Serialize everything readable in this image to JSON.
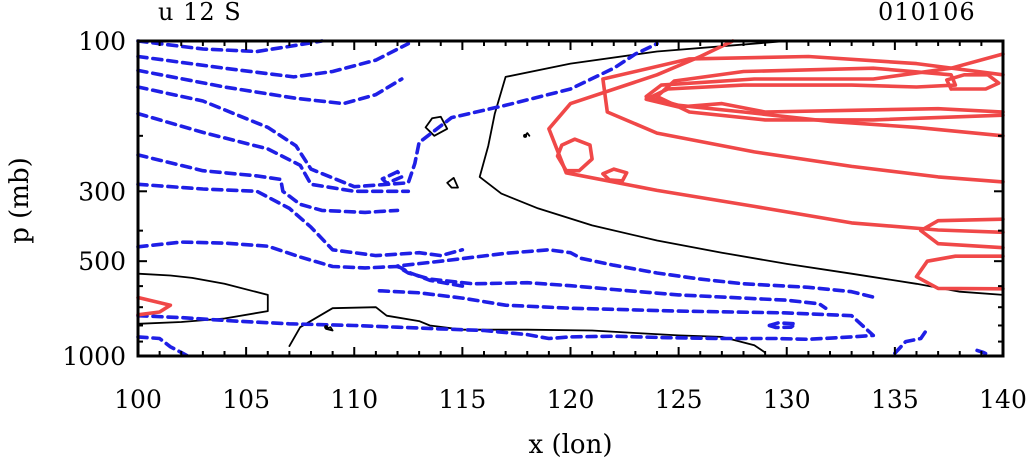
{
  "chart_data": {
    "type": "contour",
    "title_left": "u 12 S",
    "title_right": "010106",
    "xlabel": "x (lon)",
    "ylabel": "p (mb)",
    "x_ticks": [
      100,
      105,
      110,
      115,
      120,
      125,
      130,
      135,
      140
    ],
    "y_ticks": [
      "100",
      "300",
      "500",
      "1000"
    ],
    "xlim": [
      100,
      140
    ],
    "ylim": [
      1000,
      100
    ],
    "y_scale": "log",
    "contour_styles": {
      "positive": "#f04848",
      "zero": "#000000",
      "negative": "#1f1fe6"
    },
    "contours": {
      "positive": [
        [
          [
            127.5,
            100
          ],
          [
            126,
            112
          ],
          [
            124,
            128
          ],
          [
            120,
            158
          ],
          [
            119,
            190
          ],
          [
            119.8,
            262
          ],
          [
            124,
            298
          ],
          [
            128.5,
            335
          ],
          [
            133,
            378
          ],
          [
            137,
            398
          ],
          [
            140,
            405
          ]
        ],
        [
          [
            140,
            128
          ],
          [
            136,
            118
          ],
          [
            131,
            112
          ],
          [
            125.5,
            114
          ],
          [
            121.5,
            132
          ],
          [
            121.7,
            168
          ],
          [
            124,
            196
          ],
          [
            128.5,
            225
          ],
          [
            133,
            250
          ],
          [
            137,
            270
          ],
          [
            140,
            280
          ]
        ],
        [
          [
            140,
            200
          ],
          [
            136,
            188
          ],
          [
            132,
            180
          ],
          [
            128,
            168
          ],
          [
            125,
            160
          ],
          [
            123.5,
            150
          ],
          [
            124.2,
            138
          ],
          [
            128.5,
            132
          ],
          [
            134,
            132
          ],
          [
            137.6,
            122
          ],
          [
            140,
            110
          ]
        ],
        [
          [
            140,
            168
          ],
          [
            137,
            164
          ],
          [
            133,
            166
          ],
          [
            129,
            168
          ],
          [
            127,
            158
          ],
          [
            125,
            162
          ],
          [
            123.5,
            153
          ],
          [
            124.5,
            142
          ],
          [
            128,
            138
          ],
          [
            133,
            138
          ],
          [
            136,
            140
          ],
          [
            137.8,
            138
          ],
          [
            137.6,
            128
          ],
          [
            134,
            122
          ],
          [
            128,
            125
          ],
          [
            124.8,
            134
          ],
          [
            124,
            150
          ],
          [
            125.5,
            168
          ],
          [
            129,
            178
          ],
          [
            134,
            178
          ],
          [
            140,
            172
          ]
        ],
        [
          [
            137.6,
            142
          ],
          [
            137.4,
            133
          ],
          [
            138.2,
            128
          ],
          [
            139.3,
            128
          ],
          [
            139.8,
            136
          ],
          [
            139.2,
            142
          ],
          [
            137.6,
            142
          ]
        ],
        [
          [
            119.8,
            258
          ],
          [
            119.4,
            232
          ],
          [
            119.6,
            214
          ],
          [
            120.2,
            205
          ],
          [
            120.9,
            214
          ],
          [
            121,
            237
          ],
          [
            120.4,
            258
          ],
          [
            119.8,
            258
          ]
        ],
        [
          [
            121.8,
            276
          ],
          [
            121.5,
            264
          ],
          [
            122,
            255
          ],
          [
            122.6,
            262
          ],
          [
            122.4,
            278
          ],
          [
            121.8,
            276
          ]
        ],
        [
          [
            140,
            453
          ],
          [
            137,
            440
          ],
          [
            136.2,
            400
          ],
          [
            137,
            372
          ],
          [
            140,
            368
          ]
        ],
        [
          [
            140,
            482
          ],
          [
            137.8,
            482
          ],
          [
            136.5,
            500
          ],
          [
            136,
            560
          ],
          [
            137,
            610
          ],
          [
            140,
            612
          ]
        ],
        [
          [
            100,
            652
          ],
          [
            101.5,
            690
          ],
          [
            101,
            725
          ],
          [
            100,
            740
          ]
        ]
      ],
      "zero": [
        [
          [
            130,
            100
          ],
          [
            124,
            108
          ],
          [
            120,
            118
          ],
          [
            117,
            130
          ],
          [
            116.5,
            170
          ],
          [
            116.2,
            215
          ],
          [
            115.8,
            270
          ],
          [
            116.8,
            305
          ],
          [
            118.5,
            340
          ],
          [
            121,
            385
          ],
          [
            124,
            430
          ],
          [
            127,
            470
          ],
          [
            130,
            510
          ],
          [
            133,
            548
          ],
          [
            136,
            590
          ],
          [
            138,
            625
          ],
          [
            140,
            640
          ]
        ],
        [
          [
            100,
            548
          ],
          [
            101.5,
            555
          ],
          [
            102.5,
            565
          ],
          [
            104,
            590
          ],
          [
            106,
            640
          ],
          [
            106,
            720
          ],
          [
            104,
            760
          ],
          [
            102,
            780
          ],
          [
            100,
            790
          ]
        ],
        [
          [
            107,
            930
          ],
          [
            107.5,
            810
          ],
          [
            109,
            705
          ],
          [
            111,
            700
          ],
          [
            111.5,
            745
          ],
          [
            113,
            775
          ],
          [
            113.5,
            800
          ],
          [
            115,
            825
          ],
          [
            118,
            825
          ],
          [
            121,
            830
          ],
          [
            123,
            845
          ],
          [
            125,
            860
          ],
          [
            127,
            870
          ],
          [
            128.5,
            925
          ],
          [
            129,
            975
          ]
        ],
        [
          [
            113.7,
            200
          ],
          [
            113.3,
            188
          ],
          [
            113.6,
            176
          ],
          [
            114,
            174
          ],
          [
            114.3,
            190
          ],
          [
            113.7,
            200
          ]
        ],
        [
          [
            114.5,
            292
          ],
          [
            114.3,
            282
          ],
          [
            114.6,
            272
          ],
          [
            114.8,
            292
          ],
          [
            114.5,
            292
          ]
        ],
        [
          [
            117.9,
            200
          ],
          [
            118,
            196
          ],
          [
            118.1,
            200
          ]
        ],
        [
          [
            108.7,
            820
          ],
          [
            108.9,
            810
          ],
          [
            109,
            830
          ],
          [
            108.7,
            820
          ]
        ]
      ],
      "negative": [
        [
          [
            100,
            100
          ],
          [
            103,
            106
          ],
          [
            105.5,
            108
          ],
          [
            107,
            104
          ],
          [
            108.5,
            100
          ]
        ],
        [
          [
            100,
            112
          ],
          [
            104,
            122
          ],
          [
            107.2,
            130
          ],
          [
            109,
            125
          ],
          [
            111,
            115
          ],
          [
            112.5,
            102
          ]
        ],
        [
          [
            100,
            124
          ],
          [
            104,
            140
          ],
          [
            107.3,
            152
          ],
          [
            109.5,
            158
          ],
          [
            111,
            148
          ],
          [
            112.2,
            132
          ]
        ],
        [
          [
            100,
            140
          ],
          [
            103,
            155
          ],
          [
            106,
            188
          ],
          [
            107.3,
            215
          ],
          [
            108,
            255
          ],
          [
            110,
            290
          ],
          [
            112.5,
            282
          ],
          [
            112.8,
            245
          ],
          [
            113,
            210
          ],
          [
            114.5,
            175
          ],
          [
            117,
            160
          ],
          [
            120,
            142
          ],
          [
            122,
            122
          ],
          [
            123,
            110
          ],
          [
            124,
            102
          ]
        ],
        [
          [
            100,
            170
          ],
          [
            103,
            195
          ],
          [
            106,
            220
          ],
          [
            107.5,
            248
          ],
          [
            108,
            285
          ],
          [
            110,
            300
          ],
          [
            112.5,
            300
          ]
        ],
        [
          [
            100,
            230
          ],
          [
            103,
            258
          ],
          [
            105.5,
            268
          ],
          [
            106.6,
            275
          ],
          [
            106.7,
            300
          ],
          [
            107.5,
            330
          ],
          [
            108.5,
            345
          ],
          [
            110.5,
            350
          ],
          [
            112,
            345
          ]
        ],
        [
          [
            112,
            260
          ],
          [
            111.3,
            274
          ],
          [
            111.5,
            283
          ],
          [
            112.2,
            270
          ],
          [
            112,
            260
          ]
        ],
        [
          [
            100,
            285
          ],
          [
            103,
            295
          ],
          [
            105.5,
            300
          ],
          [
            107,
            340
          ],
          [
            108,
            390
          ],
          [
            109,
            460
          ],
          [
            111,
            480
          ],
          [
            113,
            470
          ],
          [
            114,
            480
          ],
          [
            115,
            460
          ]
        ],
        [
          [
            100,
            450
          ],
          [
            102,
            435
          ],
          [
            104,
            438
          ],
          [
            106,
            448
          ],
          [
            107.5,
            485
          ],
          [
            109,
            520
          ],
          [
            110.5,
            525
          ],
          [
            112,
            520
          ],
          [
            112.5,
            545
          ],
          [
            113.5,
            570
          ],
          [
            115.5,
            590
          ],
          [
            118,
            585
          ],
          [
            120,
            598
          ],
          [
            122,
            615
          ],
          [
            125,
            640
          ],
          [
            128,
            655
          ],
          [
            130,
            665
          ],
          [
            131.5,
            683
          ],
          [
            131.8,
            705
          ]
        ],
        [
          [
            115,
            600
          ],
          [
            113.5,
            575
          ],
          [
            112.6,
            545
          ],
          [
            112,
            518
          ],
          [
            114,
            500
          ],
          [
            117,
            472
          ],
          [
            119,
            460
          ],
          [
            120,
            470
          ],
          [
            120.5,
            490
          ],
          [
            122,
            515
          ],
          [
            124,
            545
          ],
          [
            126,
            570
          ],
          [
            128,
            590
          ],
          [
            131,
            605
          ],
          [
            133,
            625
          ],
          [
            134,
            650
          ]
        ],
        [
          [
            100,
            745
          ],
          [
            102,
            755
          ],
          [
            104.5,
            775
          ],
          [
            107,
            790
          ],
          [
            110,
            800
          ],
          [
            112,
            810
          ],
          [
            114,
            820
          ],
          [
            116,
            830
          ],
          [
            118,
            855
          ],
          [
            119,
            880
          ],
          [
            120,
            870
          ],
          [
            122,
            865
          ],
          [
            124.5,
            875
          ],
          [
            127,
            880
          ],
          [
            129.5,
            880
          ],
          [
            131,
            885
          ],
          [
            133,
            870
          ],
          [
            134,
            860
          ],
          [
            133.5,
            800
          ],
          [
            133,
            745
          ],
          [
            130,
            730
          ],
          [
            125,
            720
          ],
          [
            120,
            705
          ],
          [
            117,
            690
          ],
          [
            115,
            655
          ],
          [
            113,
            630
          ],
          [
            111,
            620
          ]
        ],
        [
          [
            129.2,
            800
          ],
          [
            129.6,
            785
          ],
          [
            130.4,
            790
          ],
          [
            130.2,
            810
          ],
          [
            129.5,
            812
          ],
          [
            129.2,
            800
          ]
        ],
        [
          [
            100,
            870
          ],
          [
            101,
            880
          ],
          [
            101.5,
            935
          ],
          [
            102,
            975
          ],
          [
            102.3,
            1000
          ]
        ],
        [
          [
            135,
            980
          ],
          [
            135.5,
            900
          ],
          [
            136.2,
            880
          ],
          [
            136.5,
            820
          ]
        ],
        [
          [
            138.8,
            960
          ],
          [
            139.1,
            975
          ],
          [
            139.3,
            990
          ]
        ]
      ]
    },
    "dots": [
      [
        117.9,
        200
      ],
      [
        108.7,
        810
      ]
    ]
  }
}
